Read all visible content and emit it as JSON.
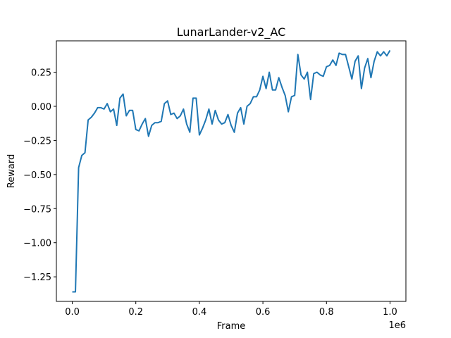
{
  "chart_data": {
    "type": "line",
    "title": "LunarLander-v2_AC",
    "xlabel": "Frame",
    "ylabel": "Reward",
    "x_offset_label": "1e6",
    "xlim": [
      -50000,
      1050000
    ],
    "ylim": [
      -1.43,
      0.48
    ],
    "xticks": [
      0.0,
      0.2,
      0.4,
      0.6,
      0.8,
      1.0
    ],
    "xtick_labels": [
      "0.0",
      "0.2",
      "0.4",
      "0.6",
      "0.8",
      "1.0"
    ],
    "yticks": [
      -1.25,
      -1.0,
      -0.75,
      -0.5,
      -0.25,
      0.0,
      0.25
    ],
    "ytick_labels": [
      "−1.25",
      "−1.00",
      "−0.75",
      "−0.50",
      "−0.25",
      "0.00",
      "0.25"
    ],
    "grid": false,
    "colors": {
      "line": "#1f77b4"
    },
    "series": [
      {
        "x": [
          0,
          10000,
          20000,
          30000,
          40000,
          50000,
          60000,
          70000,
          80000,
          90000,
          100000,
          110000,
          120000,
          130000,
          140000,
          150000,
          160000,
          170000,
          180000,
          190000,
          200000,
          210000,
          220000,
          230000,
          240000,
          250000,
          260000,
          270000,
          280000,
          290000,
          300000,
          310000,
          320000,
          330000,
          340000,
          350000,
          360000,
          370000,
          380000,
          390000,
          400000,
          410000,
          420000,
          430000,
          440000,
          450000,
          460000,
          470000,
          480000,
          490000,
          500000,
          510000,
          520000,
          530000,
          540000,
          550000,
          560000,
          570000,
          580000,
          590000,
          600000,
          610000,
          620000,
          630000,
          640000,
          650000,
          660000,
          670000,
          680000,
          690000,
          700000,
          710000,
          720000,
          730000,
          740000,
          750000,
          760000,
          770000,
          780000,
          790000,
          800000,
          810000,
          820000,
          830000,
          840000,
          850000,
          860000,
          870000,
          880000,
          890000,
          900000,
          910000,
          920000,
          930000,
          940000,
          950000,
          960000,
          970000,
          980000,
          990000,
          1000000
        ],
        "values": [
          -1.36,
          -1.36,
          -0.45,
          -0.36,
          -0.34,
          -0.1,
          -0.08,
          -0.05,
          -0.01,
          -0.01,
          -0.02,
          0.02,
          -0.04,
          -0.02,
          -0.14,
          0.06,
          0.09,
          -0.07,
          -0.03,
          -0.03,
          -0.17,
          -0.18,
          -0.13,
          -0.09,
          -0.22,
          -0.14,
          -0.12,
          -0.12,
          -0.11,
          0.02,
          0.04,
          -0.06,
          -0.05,
          -0.09,
          -0.07,
          -0.02,
          -0.13,
          -0.19,
          0.06,
          0.06,
          -0.21,
          -0.16,
          -0.1,
          -0.02,
          -0.13,
          -0.03,
          -0.1,
          -0.13,
          -0.12,
          -0.06,
          -0.14,
          -0.19,
          -0.05,
          -0.01,
          -0.13,
          0.0,
          0.02,
          0.07,
          0.07,
          0.12,
          0.22,
          0.13,
          0.25,
          0.12,
          0.12,
          0.21,
          0.14,
          0.08,
          -0.04,
          0.07,
          0.08,
          0.38,
          0.23,
          0.2,
          0.25,
          0.05,
          0.24,
          0.25,
          0.23,
          0.22,
          0.29,
          0.3,
          0.34,
          0.3,
          0.39,
          0.38,
          0.38,
          0.29,
          0.2,
          0.33,
          0.37,
          0.13,
          0.28,
          0.35,
          0.21,
          0.33,
          0.4,
          0.37,
          0.4,
          0.37,
          0.41
        ]
      }
    ]
  }
}
